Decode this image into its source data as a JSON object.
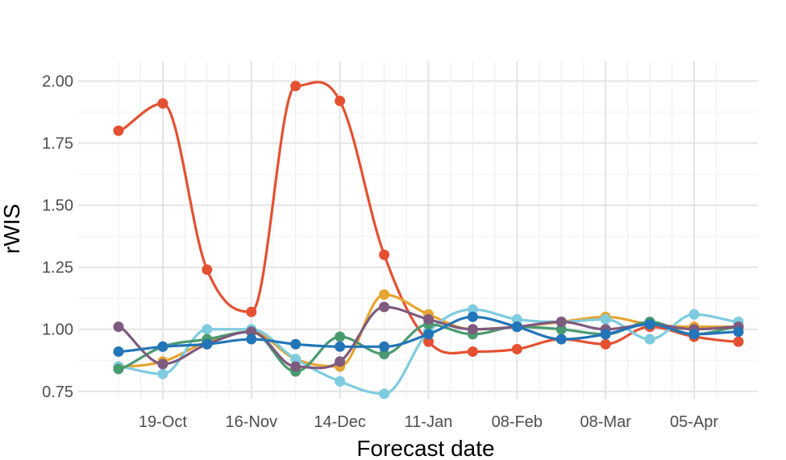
{
  "chart_data": {
    "type": "line",
    "title": "",
    "xlabel": "Forecast date",
    "ylabel": "rWIS",
    "x": [
      "05-Oct",
      "12-Oct",
      "19-Oct",
      "26-Oct",
      "02-Nov",
      "09-Nov",
      "16-Nov",
      "23-Nov",
      "30-Nov",
      "07-Dec",
      "14-Dec",
      "21-Dec",
      "28-Dec",
      "04-Jan",
      "11-Jan",
      "18-Jan",
      "25-Jan",
      "01-Feb",
      "08-Feb",
      "15-Feb",
      "22-Feb",
      "01-Mar",
      "08-Mar",
      "15-Mar",
      "22-Mar",
      "29-Mar",
      "05-Apr",
      "12-Apr"
    ],
    "x_ticks": [
      "19-Oct",
      "16-Nov",
      "14-Dec",
      "11-Jan",
      "08-Feb",
      "08-Mar",
      "05-Apr"
    ],
    "ylim": [
      0.72,
      2.08
    ],
    "y_ticks": [
      "0.75",
      "1.00",
      "1.25",
      "1.50",
      "1.75",
      "2.00"
    ],
    "grid": true,
    "legend": "none",
    "series": [
      {
        "color": "#e45132",
        "points": [
          [
            "05-Oct",
            1.8
          ],
          [
            "19-Oct",
            1.91
          ],
          [
            "02-Nov",
            1.24
          ],
          [
            "16-Nov",
            1.07
          ],
          [
            "30-Nov",
            1.98
          ],
          [
            "14-Dec",
            1.92
          ],
          [
            "28-Dec",
            1.3
          ],
          [
            "11-Jan",
            0.95
          ],
          [
            "25-Jan",
            0.91
          ],
          [
            "08-Feb",
            0.92
          ],
          [
            "22-Feb",
            0.96
          ],
          [
            "08-Mar",
            0.94
          ],
          [
            "22-Mar",
            1.01
          ],
          [
            "05-Apr",
            0.97
          ],
          [
            "19-Apr",
            0.95
          ]
        ]
      },
      {
        "color": "#e6a532",
        "points": [
          [
            "05-Oct",
            0.85
          ],
          [
            "19-Oct",
            0.87
          ],
          [
            "02-Nov",
            0.95
          ],
          [
            "16-Nov",
            0.99
          ],
          [
            "30-Nov",
            0.88
          ],
          [
            "14-Dec",
            0.85
          ],
          [
            "28-Dec",
            1.14
          ],
          [
            "11-Jan",
            1.06
          ],
          [
            "25-Jan",
            1.0
          ],
          [
            "08-Feb",
            1.01
          ],
          [
            "22-Feb",
            1.03
          ],
          [
            "08-Mar",
            1.05
          ],
          [
            "22-Mar",
            1.02
          ],
          [
            "05-Apr",
            1.01
          ],
          [
            "19-Apr",
            1.01
          ]
        ]
      },
      {
        "color": "#7ecbe0",
        "points": [
          [
            "05-Oct",
            0.85
          ],
          [
            "19-Oct",
            0.82
          ],
          [
            "02-Nov",
            1.0
          ],
          [
            "16-Nov",
            1.0
          ],
          [
            "30-Nov",
            0.88
          ],
          [
            "14-Dec",
            0.79
          ],
          [
            "28-Dec",
            0.74
          ],
          [
            "11-Jan",
            0.99
          ],
          [
            "25-Jan",
            1.08
          ],
          [
            "08-Feb",
            1.04
          ],
          [
            "22-Feb",
            1.03
          ],
          [
            "08-Mar",
            1.04
          ],
          [
            "22-Mar",
            0.96
          ],
          [
            "05-Apr",
            1.06
          ],
          [
            "19-Apr",
            1.03
          ]
        ]
      },
      {
        "color": "#4a9a70",
        "points": [
          [
            "05-Oct",
            0.84
          ],
          [
            "19-Oct",
            0.93
          ],
          [
            "02-Nov",
            0.96
          ],
          [
            "16-Nov",
            0.99
          ],
          [
            "30-Nov",
            0.83
          ],
          [
            "14-Dec",
            0.97
          ],
          [
            "28-Dec",
            0.9
          ],
          [
            "11-Jan",
            1.02
          ],
          [
            "25-Jan",
            0.98
          ],
          [
            "08-Feb",
            1.01
          ],
          [
            "22-Feb",
            1.0
          ],
          [
            "08-Mar",
            0.98
          ],
          [
            "22-Mar",
            1.03
          ],
          [
            "05-Apr",
            0.98
          ],
          [
            "19-Apr",
            1.01
          ]
        ]
      },
      {
        "color": "#7d5a7e",
        "points": [
          [
            "05-Oct",
            1.01
          ],
          [
            "19-Oct",
            0.86
          ],
          [
            "02-Nov",
            0.94
          ],
          [
            "16-Nov",
            0.99
          ],
          [
            "30-Nov",
            0.85
          ],
          [
            "14-Dec",
            0.87
          ],
          [
            "28-Dec",
            1.09
          ],
          [
            "11-Jan",
            1.04
          ],
          [
            "25-Jan",
            1.0
          ],
          [
            "08-Feb",
            1.01
          ],
          [
            "22-Feb",
            1.03
          ],
          [
            "08-Mar",
            1.0
          ],
          [
            "22-Mar",
            1.02
          ],
          [
            "05-Apr",
            1.0
          ],
          [
            "19-Apr",
            1.01
          ]
        ]
      },
      {
        "color": "#2275b8",
        "points": [
          [
            "05-Oct",
            0.91
          ],
          [
            "19-Oct",
            0.93
          ],
          [
            "02-Nov",
            0.94
          ],
          [
            "16-Nov",
            0.96
          ],
          [
            "30-Nov",
            0.94
          ],
          [
            "14-Dec",
            0.93
          ],
          [
            "28-Dec",
            0.93
          ],
          [
            "11-Jan",
            0.98
          ],
          [
            "25-Jan",
            1.05
          ],
          [
            "08-Feb",
            1.01
          ],
          [
            "22-Feb",
            0.96
          ],
          [
            "08-Mar",
            0.98
          ],
          [
            "22-Mar",
            1.02
          ],
          [
            "05-Apr",
            0.98
          ],
          [
            "19-Apr",
            0.99
          ]
        ]
      }
    ]
  }
}
